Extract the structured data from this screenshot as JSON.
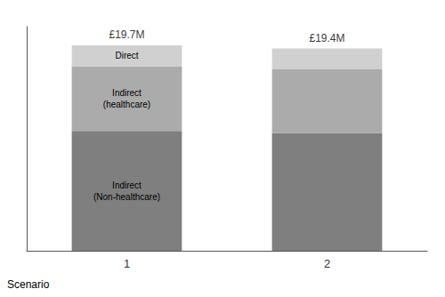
{
  "chart_data": {
    "type": "bar",
    "stacked": true,
    "categories": [
      "1",
      "2"
    ],
    "series": [
      {
        "color": "#7f7f7f",
        "values": [
          11.5,
          11.3
        ],
        "value_labels": [
          "Indirect\n(Non-healthcare)",
          null
        ]
      },
      {
        "color": "#ababab",
        "values": [
          6.2,
          6.1
        ],
        "value_labels": [
          "Indirect\n(healthcare)",
          null
        ]
      },
      {
        "color": "#d0d0d0",
        "values": [
          2.0,
          2.0
        ],
        "value_labels": [
          "Direct",
          null
        ]
      }
    ],
    "totals": [
      19.7,
      19.4
    ],
    "total_labels": [
      "£19.7M",
      "£19.4M"
    ],
    "xlabel": "Scenario",
    "ylim": [
      0,
      21.5
    ],
    "yticks": [],
    "grid": false,
    "tick_labels": "x"
  }
}
